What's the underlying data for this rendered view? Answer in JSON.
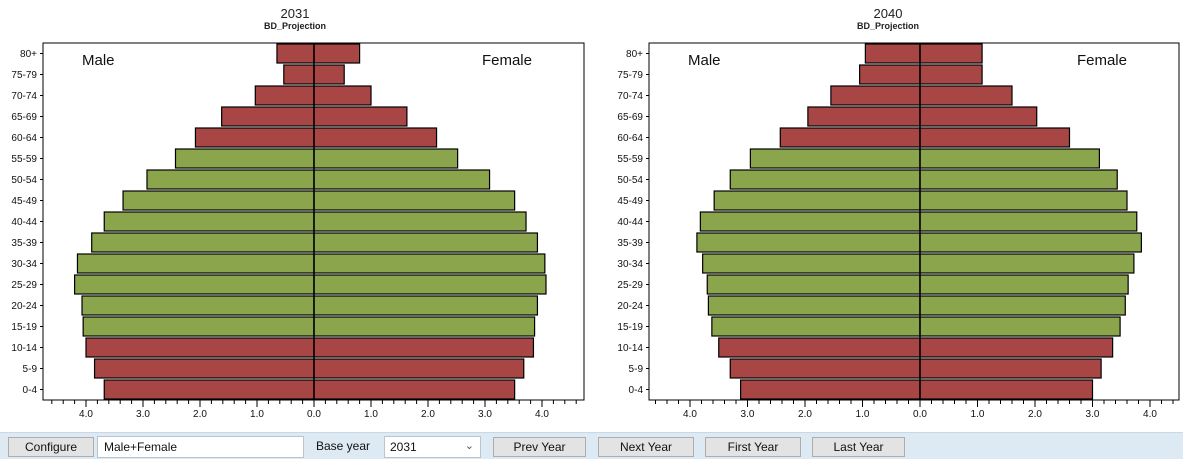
{
  "charts": [
    {
      "title": "2031",
      "subtitle": "BD_Projection",
      "male_label": "Male",
      "female_label": "Female"
    },
    {
      "title": "2040",
      "subtitle": "BD_Projection",
      "male_label": "Male",
      "female_label": "Female"
    }
  ],
  "chart_data": [
    {
      "type": "bar",
      "orientation": "horizontal-population-pyramid",
      "title": "2031",
      "subtitle": "BD_Projection",
      "categories": [
        "0-4",
        "5-9",
        "10-14",
        "15-19",
        "20-24",
        "25-29",
        "30-34",
        "35-39",
        "40-44",
        "45-49",
        "50-54",
        "55-59",
        "60-64",
        "65-69",
        "70-74",
        "75-79",
        "80+"
      ],
      "series": [
        {
          "name": "Male",
          "values": [
            3.68,
            3.85,
            4.0,
            4.05,
            4.07,
            4.2,
            4.15,
            3.9,
            3.68,
            3.35,
            2.93,
            2.43,
            2.08,
            1.62,
            1.03,
            0.53,
            0.65
          ]
        },
        {
          "name": "Female",
          "values": [
            3.52,
            3.68,
            3.85,
            3.87,
            3.92,
            4.07,
            4.05,
            3.92,
            3.72,
            3.52,
            3.08,
            2.52,
            2.15,
            1.63,
            1.0,
            0.53,
            0.8
          ]
        }
      ],
      "highlight_color": "#a84545",
      "main_color": "#8aa54c",
      "highlighted_groups": [
        "0-4",
        "5-9",
        "10-14",
        "60-64",
        "65-69",
        "70-74",
        "75-79",
        "80+"
      ],
      "x_tick_labels": [
        "4.0",
        "3.0",
        "2.0",
        "1.0",
        "0.0",
        "1.0",
        "2.0",
        "3.0",
        "4.0"
      ],
      "xlim": [
        -4.5,
        4.7
      ]
    },
    {
      "type": "bar",
      "orientation": "horizontal-population-pyramid",
      "title": "2040",
      "subtitle": "BD_Projection",
      "categories": [
        "0-4",
        "5-9",
        "10-14",
        "15-19",
        "20-24",
        "25-29",
        "30-34",
        "35-39",
        "40-44",
        "45-49",
        "50-54",
        "55-59",
        "60-64",
        "65-69",
        "70-74",
        "75-79",
        "80+"
      ],
      "series": [
        {
          "name": "Male",
          "values": [
            3.12,
            3.3,
            3.5,
            3.62,
            3.68,
            3.7,
            3.78,
            3.88,
            3.82,
            3.58,
            3.3,
            2.95,
            2.43,
            1.95,
            1.55,
            1.05,
            0.95
          ]
        },
        {
          "name": "Female",
          "values": [
            3.0,
            3.15,
            3.35,
            3.48,
            3.57,
            3.62,
            3.72,
            3.85,
            3.77,
            3.6,
            3.43,
            3.12,
            2.6,
            2.03,
            1.6,
            1.08,
            1.08
          ]
        }
      ],
      "highlight_color": "#a84545",
      "main_color": "#8aa54c",
      "highlighted_groups": [
        "0-4",
        "5-9",
        "10-14",
        "60-64",
        "65-69",
        "70-74",
        "75-79",
        "80+"
      ],
      "x_tick_labels": [
        "4.0",
        "3.0",
        "2.0",
        "1.0",
        "0.0",
        "1.0",
        "2.0",
        "3.0",
        "4.0"
      ],
      "xlim": [
        -4.2,
        4.5
      ]
    }
  ],
  "toolbar": {
    "configure_label": "Configure",
    "sex_value": "Male+Female",
    "base_year_label": "Base year",
    "base_year_value": "2031",
    "base_year_chevron": "chevron-down-icon",
    "prev_year_label": "Prev Year",
    "next_year_label": "Next Year",
    "first_year_label": "First Year",
    "last_year_label": "Last Year"
  },
  "colors": {
    "toolbar_bg": "#dde9f3",
    "button_bg": "#e3e3e3"
  }
}
